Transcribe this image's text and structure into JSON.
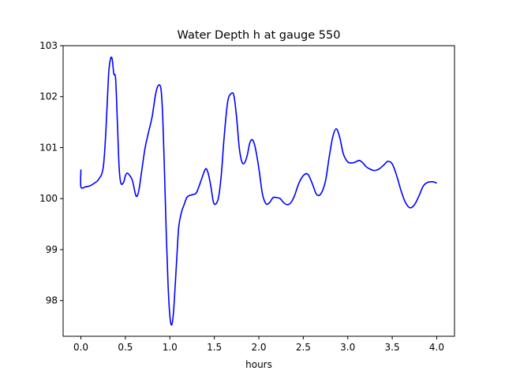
{
  "chart_data": {
    "type": "line",
    "title": "Water Depth h at gauge 550",
    "xlabel": "hours",
    "ylabel": "",
    "xlim": [
      -0.2,
      4.2
    ],
    "ylim": [
      97.3,
      103.0
    ],
    "xticks": [
      0.0,
      0.5,
      1.0,
      1.5,
      2.0,
      2.5,
      3.0,
      3.5,
      4.0
    ],
    "xtick_labels": [
      "0.0",
      "0.5",
      "1.0",
      "1.5",
      "2.0",
      "2.5",
      "3.0",
      "3.5",
      "4.0"
    ],
    "yticks": [
      98,
      99,
      100,
      101,
      102,
      103
    ],
    "ytick_labels": [
      "98",
      "99",
      "100",
      "101",
      "102",
      "103"
    ],
    "grid": false,
    "series": [
      {
        "color": "#0000ff",
        "x": [
          0.0,
          0.0,
          0.05,
          0.1,
          0.15,
          0.2,
          0.25,
          0.28,
          0.31,
          0.33,
          0.35,
          0.37,
          0.39,
          0.41,
          0.43,
          0.45,
          0.48,
          0.5,
          0.52,
          0.55,
          0.58,
          0.62,
          0.65,
          0.68,
          0.72,
          0.76,
          0.8,
          0.84,
          0.87,
          0.9,
          0.92,
          0.94,
          0.96,
          0.98,
          1.0,
          1.02,
          1.04,
          1.06,
          1.08,
          1.1,
          1.13,
          1.16,
          1.19,
          1.22,
          1.26,
          1.3,
          1.35,
          1.4,
          1.43,
          1.46,
          1.49,
          1.52,
          1.55,
          1.58,
          1.61,
          1.65,
          1.69,
          1.72,
          1.75,
          1.78,
          1.81,
          1.84,
          1.87,
          1.9,
          1.93,
          1.96,
          2.0,
          2.04,
          2.08,
          2.12,
          2.16,
          2.2,
          2.24,
          2.28,
          2.32,
          2.36,
          2.4,
          2.45,
          2.5,
          2.55,
          2.6,
          2.65,
          2.7,
          2.75,
          2.79,
          2.83,
          2.87,
          2.91,
          2.95,
          3.0,
          3.05,
          3.09,
          3.13,
          3.17,
          3.21,
          3.25,
          3.3,
          3.35,
          3.4,
          3.45,
          3.5,
          3.55,
          3.6,
          3.65,
          3.7,
          3.75,
          3.8,
          3.85,
          3.9,
          3.95,
          3.98,
          4.0
        ],
        "y": [
          100.57,
          100.23,
          100.23,
          100.25,
          100.3,
          100.38,
          100.6,
          101.3,
          102.4,
          102.72,
          102.75,
          102.45,
          102.35,
          101.5,
          100.6,
          100.3,
          100.32,
          100.45,
          100.5,
          100.45,
          100.35,
          100.05,
          100.15,
          100.5,
          100.98,
          101.3,
          101.6,
          102.05,
          102.22,
          102.15,
          101.6,
          100.5,
          99.3,
          98.3,
          97.7,
          97.52,
          97.75,
          98.3,
          98.9,
          99.45,
          99.73,
          99.88,
          100.02,
          100.06,
          100.08,
          100.12,
          100.35,
          100.58,
          100.5,
          100.25,
          99.93,
          99.9,
          100.05,
          100.5,
          101.2,
          101.9,
          102.06,
          102.02,
          101.6,
          101.0,
          100.72,
          100.7,
          100.85,
          101.1,
          101.15,
          101.0,
          100.6,
          100.1,
          99.9,
          99.92,
          100.02,
          100.02,
          100.0,
          99.92,
          99.88,
          99.92,
          100.05,
          100.3,
          100.45,
          100.48,
          100.3,
          100.08,
          100.1,
          100.35,
          100.8,
          101.2,
          101.37,
          101.2,
          100.88,
          100.72,
          100.7,
          100.72,
          100.75,
          100.7,
          100.62,
          100.58,
          100.55,
          100.58,
          100.65,
          100.73,
          100.68,
          100.45,
          100.15,
          99.92,
          99.82,
          99.88,
          100.05,
          100.25,
          100.32,
          100.33,
          100.32,
          100.3
        ]
      }
    ]
  }
}
